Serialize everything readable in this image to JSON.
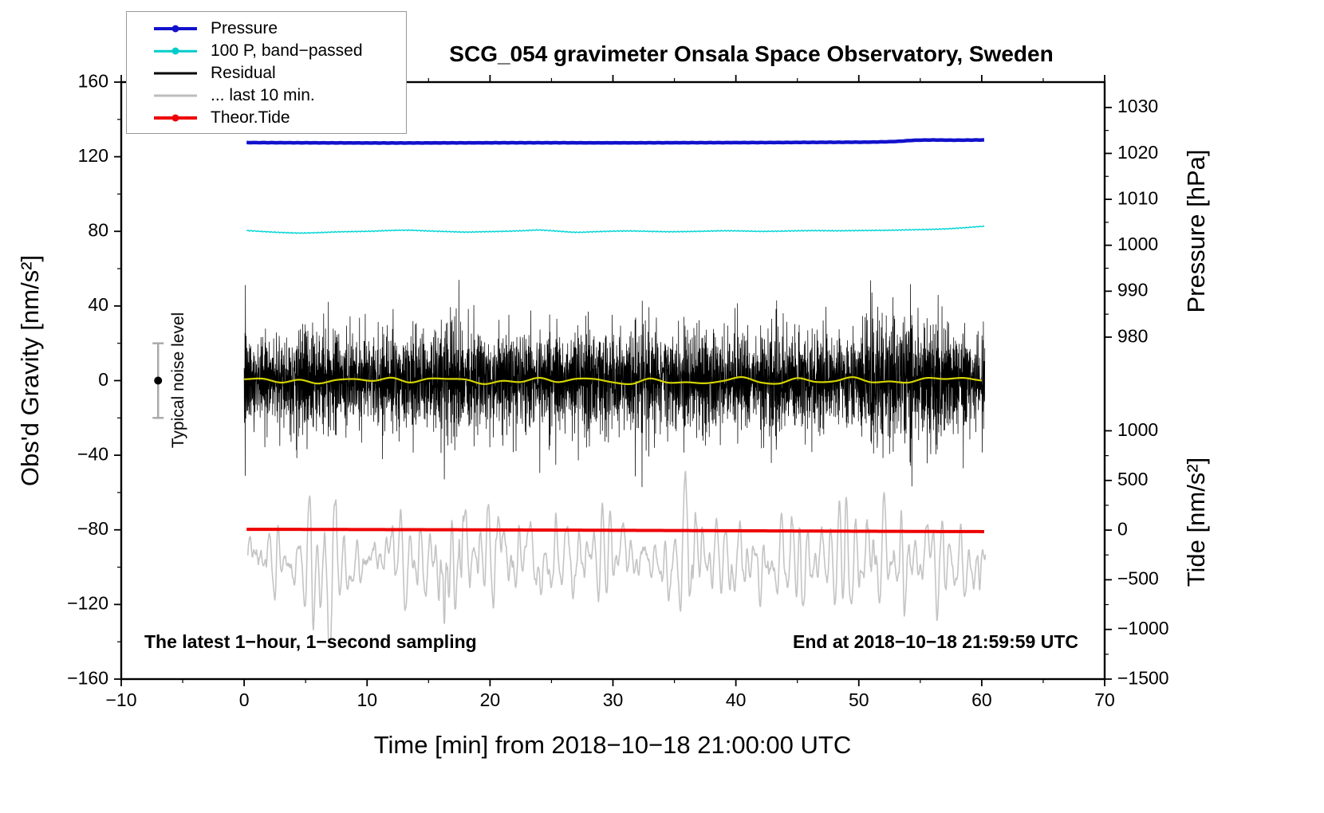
{
  "title": "SCG_054 gravimeter Onsala Space Observatory, Sweden",
  "annotations": {
    "sampling_note": "The latest 1−hour, 1−second sampling",
    "end_time": "End at 2018−10−18 21:59:59 UTC",
    "noise_level_label": "Typical noise level"
  },
  "legend": {
    "items": [
      {
        "label": "Pressure",
        "color": "#1111cc",
        "marker": "line-dot",
        "width": 4
      },
      {
        "label": "100 P, band−passed",
        "color": "#00cccc",
        "marker": "line-dot",
        "width": 2.5
      },
      {
        "label": "Residual",
        "color": "#000000",
        "marker": "line",
        "width": 3
      },
      {
        "label": "... last 10 min.",
        "color": "#bdbdbd",
        "marker": "line",
        "width": 3
      },
      {
        "label": "Theor.Tide",
        "color": "#ee0000",
        "marker": "line-dot",
        "width": 4
      }
    ]
  },
  "chart_data": {
    "type": "line",
    "title": "SCG_054 gravimeter Onsala Space Observatory, Sweden",
    "x": {
      "label": "Time [min] from 2018−10−18 21:00:00 UTC",
      "range": [
        -10,
        70
      ],
      "ticks": [
        -10,
        0,
        10,
        20,
        30,
        40,
        50,
        60,
        70
      ],
      "minor_step": 5
    },
    "y_gravity": {
      "label": "Obs'd Gravity [nm/s²]",
      "range": [
        -160,
        160
      ],
      "ticks": [
        -160,
        -120,
        -80,
        -40,
        0,
        40,
        80,
        120,
        160
      ],
      "minor_step": 20
    },
    "y_pressure": {
      "label": "Pressure [hPa]",
      "ticks": [
        980,
        990,
        1000,
        1010,
        1020,
        1030
      ],
      "minor_step": 5,
      "value_span": [
        980,
        1030
      ],
      "gravity_span": [
        23.3,
        146.4
      ]
    },
    "y_tide": {
      "label": "Tide [nm/s²]",
      "ticks": [
        -1500,
        -1000,
        -500,
        0,
        500,
        1000
      ],
      "minor_step": 250,
      "value_span": [
        -1500,
        1000
      ],
      "gravity_span": [
        -160,
        -26.9
      ]
    },
    "noise_level": {
      "x": -7,
      "center": 0,
      "half_range": 20
    },
    "series": {
      "pressure": {
        "name": "Pressure",
        "axis": "pressure",
        "unit": "hPa",
        "color": "#1111cc",
        "width": 4.5,
        "anchors": [
          [
            0.2,
            1022.35
          ],
          [
            6,
            1022.3
          ],
          [
            12,
            1022.27
          ],
          [
            18,
            1022.3
          ],
          [
            24,
            1022.32
          ],
          [
            30,
            1022.3
          ],
          [
            36,
            1022.33
          ],
          [
            42,
            1022.36
          ],
          [
            48,
            1022.42
          ],
          [
            51,
            1022.46
          ],
          [
            53,
            1022.6
          ],
          [
            54.5,
            1022.85
          ],
          [
            56,
            1022.92
          ],
          [
            58,
            1022.88
          ],
          [
            60.2,
            1022.93
          ]
        ]
      },
      "band_passed": {
        "name": "100 P, band−passed",
        "axis": "gravity",
        "unit": "nm/s²",
        "color": "#00d5d5",
        "width": 1.4,
        "anchors": [
          [
            0.2,
            80.4
          ],
          [
            1.5,
            79.9
          ],
          [
            3,
            79.4
          ],
          [
            4.5,
            79.1
          ],
          [
            6,
            79.3
          ],
          [
            7.5,
            79.7
          ],
          [
            9,
            79.9
          ],
          [
            10.5,
            80.1
          ],
          [
            12,
            80.5
          ],
          [
            13.5,
            80.6
          ],
          [
            15,
            80.2
          ],
          [
            16.5,
            79.9
          ],
          [
            18,
            79.6
          ],
          [
            19.5,
            79.8
          ],
          [
            21,
            80.0
          ],
          [
            22.5,
            80.3
          ],
          [
            24,
            80.7
          ],
          [
            25.5,
            80.1
          ],
          [
            27,
            79.5
          ],
          [
            28.5,
            79.8
          ],
          [
            30,
            80.1
          ],
          [
            31.5,
            80.2
          ],
          [
            33,
            80.0
          ],
          [
            34.5,
            79.8
          ],
          [
            36,
            79.9
          ],
          [
            37.5,
            80.1
          ],
          [
            39,
            80.3
          ],
          [
            40.5,
            80.2
          ],
          [
            42,
            80.0
          ],
          [
            43.5,
            80.1
          ],
          [
            45,
            80.3
          ],
          [
            46.5,
            80.4
          ],
          [
            48,
            80.3
          ],
          [
            49.5,
            80.4
          ],
          [
            51,
            80.5
          ],
          [
            52.5,
            80.6
          ],
          [
            54,
            80.8
          ],
          [
            55.5,
            81.0
          ],
          [
            57,
            81.3
          ],
          [
            58.5,
            81.9
          ],
          [
            60.2,
            82.7
          ]
        ]
      },
      "residual": {
        "name": "Residual",
        "axis": "gravity",
        "unit": "nm/s²",
        "color": "#000000",
        "width": 0.75,
        "t_start": 0,
        "t_end": 60.25,
        "rate_per_min": 60,
        "mean": 0,
        "base_std": 13.5,
        "clip": 57,
        "bursts": [
          {
            "t": 5,
            "gain": 1.25
          },
          {
            "t": 16.5,
            "gain": 1.45
          },
          {
            "t": 23,
            "gain": 1.2
          },
          {
            "t": 28.6,
            "gain": 1.5
          },
          {
            "t": 32.2,
            "gain": 1.45
          },
          {
            "t": 43,
            "gain": 1.2
          },
          {
            "t": 51.2,
            "gain": 1.65
          },
          {
            "t": 53.6,
            "gain": 1.5
          },
          {
            "t": 56,
            "gain": 1.3
          }
        ]
      },
      "residual_smooth": {
        "name": "Residual smoothed",
        "axis": "gravity",
        "color": "#d4d400",
        "width": 2.2,
        "mean": 0,
        "amp": 1.9
      },
      "theor_tide": {
        "name": "Theor.Tide",
        "axis": "tide",
        "unit": "nm/s²",
        "color": "#ee0000",
        "width": 4,
        "anchors": [
          [
            0.2,
            8
          ],
          [
            15,
            4
          ],
          [
            30,
            -2
          ],
          [
            45,
            -9
          ],
          [
            60.2,
            -15
          ]
        ]
      },
      "last10": {
        "name": "... last 10 min.",
        "axis": "tide",
        "color": "#c4c4c4",
        "width": 1.6,
        "t_start": 0.3,
        "t_end": 60.3,
        "center": -300,
        "std": 210,
        "period_min": 0.7,
        "clip_low": -1140,
        "clip_high": 640,
        "bursts": [
          {
            "t": 7,
            "gain": 2.0
          },
          {
            "t": 16.3,
            "gain": 2.6
          },
          {
            "t": 17.6,
            "gain": 2.0
          },
          {
            "t": 21,
            "gain": 1.35
          },
          {
            "t": 36.3,
            "gain": 2.4
          },
          {
            "t": 45.5,
            "gain": 1.5
          },
          {
            "t": 50.8,
            "gain": 1.9
          },
          {
            "t": 53.3,
            "gain": 1.7
          },
          {
            "t": 57.5,
            "gain": 1.3
          }
        ]
      }
    }
  }
}
